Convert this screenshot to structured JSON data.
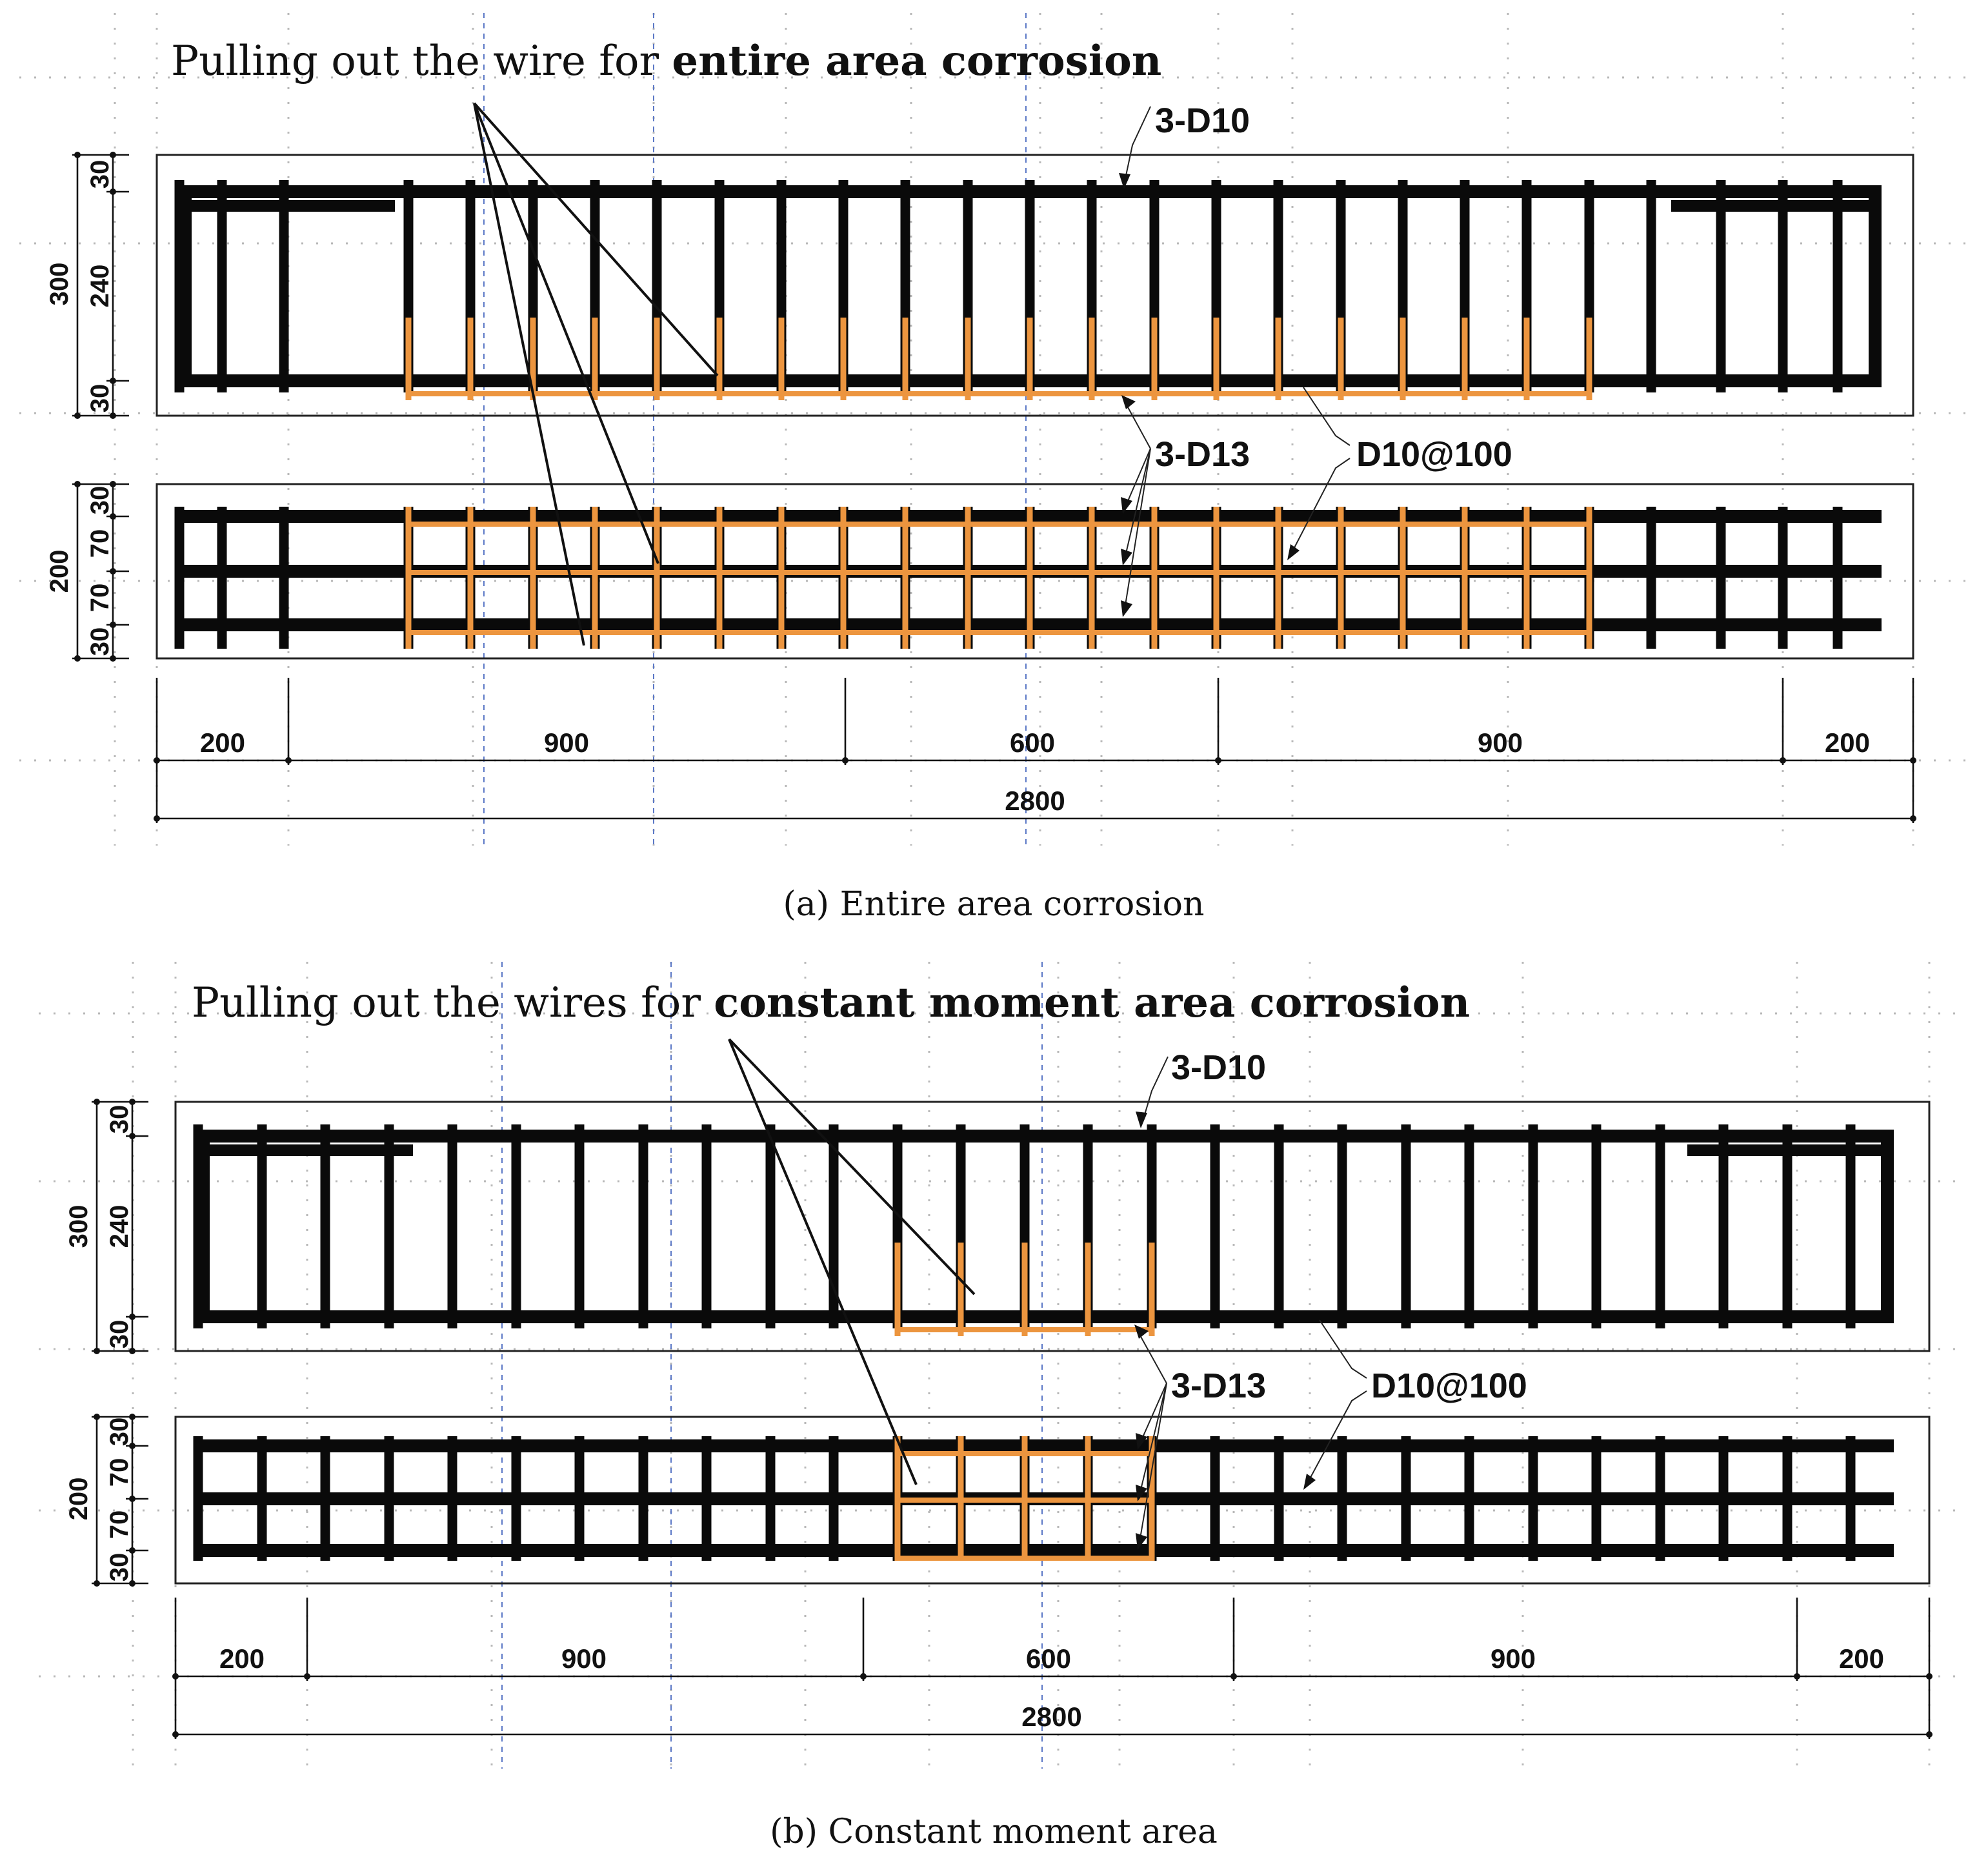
{
  "panel_a": {
    "title_prefix": "Pulling out the wire for ",
    "title_bold": "entire area corrosion",
    "label_top_bars": "3-D10",
    "label_bottom_bars": "3-D13",
    "label_stirrups": "D10@100",
    "elevation_dims": [
      "30",
      "240",
      "30"
    ],
    "elevation_total": "300",
    "plan_dims": [
      "30",
      "70",
      "70",
      "30"
    ],
    "plan_total": "200",
    "span_dims": [
      "200",
      "900",
      "600",
      "900",
      "200"
    ],
    "total_length": "2800",
    "caption": "(a) Entire area corrosion"
  },
  "panel_b": {
    "title_prefix": "Pulling out the wires for ",
    "title_bold": "constant moment area corrosion",
    "label_top_bars": "3-D10",
    "label_bottom_bars": "3-D13",
    "label_stirrups": "D10@100",
    "elevation_dims": [
      "30",
      "240",
      "30"
    ],
    "elevation_total": "300",
    "plan_dims": [
      "30",
      "70",
      "70",
      "30"
    ],
    "plan_total": "200",
    "span_dims": [
      "200",
      "900",
      "600",
      "900",
      "200"
    ],
    "total_length": "2800",
    "caption": "(b) Constant moment area"
  },
  "colors": {
    "steel": "#0a0a0a",
    "corroded_steel": "#ec953f",
    "centerline": "#5b78c6",
    "grid": "#b8b8b8"
  }
}
